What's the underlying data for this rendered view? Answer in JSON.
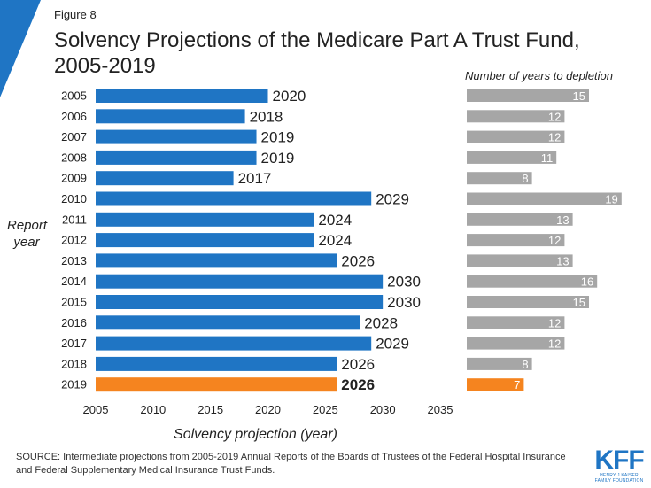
{
  "header": {
    "figure_label": "Figure 8",
    "title": "Solvency Projections of the Medicare Part A Trust Fund, 2005-2019"
  },
  "colors": {
    "blue": "#1f75c4",
    "gray": "#a6a6a6",
    "orange": "#f5841f",
    "accent": "#1f75c4"
  },
  "chart_data": [
    {
      "type": "bar",
      "orientation": "horizontal",
      "categories": [
        "2005",
        "2006",
        "2007",
        "2008",
        "2009",
        "2010",
        "2011",
        "2012",
        "2013",
        "2014",
        "2015",
        "2016",
        "2017",
        "2018",
        "2019"
      ],
      "values": [
        2020,
        2018,
        2019,
        2019,
        2017,
        2029,
        2024,
        2024,
        2026,
        2030,
        2030,
        2028,
        2029,
        2026,
        2026
      ],
      "highlight_index": 14,
      "xlabel": "Solvency projection (year)",
      "ylabel": "Report year",
      "xlim": [
        2005,
        2035
      ],
      "xticks": [
        "2005",
        "2010",
        "2015",
        "2020",
        "2025",
        "2030",
        "2035"
      ],
      "grid": false
    },
    {
      "type": "bar",
      "orientation": "horizontal",
      "title": "Number of years to depletion",
      "categories": [
        "2005",
        "2006",
        "2007",
        "2008",
        "2009",
        "2010",
        "2011",
        "2012",
        "2013",
        "2014",
        "2015",
        "2016",
        "2017",
        "2018",
        "2019"
      ],
      "values": [
        15,
        12,
        12,
        11,
        8,
        19,
        13,
        12,
        13,
        16,
        15,
        12,
        12,
        8,
        7
      ],
      "highlight_index": 14,
      "xlim": [
        0,
        20
      ]
    }
  ],
  "y_label_lines": [
    "Report",
    "year"
  ],
  "footer": {
    "source": "SOURCE: Intermediate projections from 2005-2019 Annual Reports of the Boards of Trustees of the Federal Hospital Insurance and Federal Supplementary Medical Insurance Trust Funds.",
    "logo_text": "KFF",
    "logo_subtext": [
      "HENRY J KAISER",
      "FAMILY FOUNDATION"
    ]
  }
}
